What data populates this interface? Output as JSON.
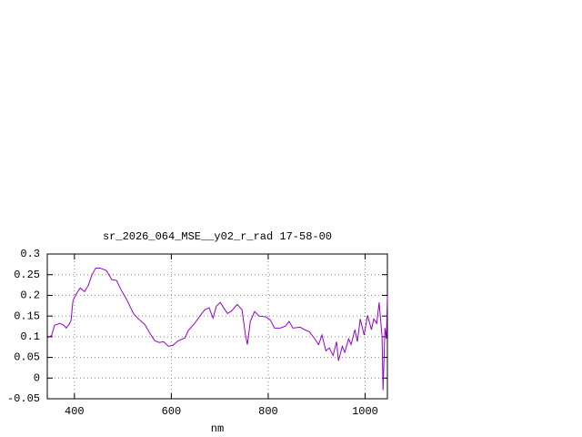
{
  "chart_data": {
    "type": "line",
    "title": "sr_2026_064_MSE__y02_r_rad 17-58-00",
    "x_label": "nm",
    "x": [
      344,
      353,
      359,
      370,
      378,
      383,
      389,
      393,
      397,
      402,
      412,
      421,
      429,
      436,
      444,
      453,
      466,
      477,
      487,
      496,
      507,
      522,
      532,
      545,
      556,
      566,
      575,
      584,
      594,
      603,
      614,
      628,
      635,
      648,
      659,
      669,
      678,
      686,
      693,
      701,
      708,
      716,
      725,
      736,
      746,
      753,
      757,
      763,
      772,
      781,
      795,
      804,
      813,
      825,
      836,
      843,
      851,
      866,
      875,
      885,
      896,
      904,
      911,
      919,
      926,
      934,
      941,
      945,
      953,
      958,
      966,
      971,
      979,
      984,
      990,
      998,
      1005,
      1013,
      1018,
      1024,
      1029,
      1035,
      1037,
      1041,
      1044,
      1046
    ],
    "series": [
      {
        "color": "#9400d3",
        "values": [
          0.097,
          0.103,
          0.128,
          0.132,
          0.128,
          0.121,
          0.13,
          0.139,
          0.187,
          0.2,
          0.218,
          0.209,
          0.225,
          0.249,
          0.266,
          0.266,
          0.26,
          0.238,
          0.236,
          0.214,
          0.192,
          0.156,
          0.143,
          0.13,
          0.108,
          0.09,
          0.086,
          0.088,
          0.077,
          0.079,
          0.09,
          0.097,
          0.115,
          0.132,
          0.15,
          0.165,
          0.17,
          0.145,
          0.174,
          0.183,
          0.17,
          0.156,
          0.163,
          0.178,
          0.165,
          0.104,
          0.081,
          0.137,
          0.161,
          0.15,
          0.148,
          0.141,
          0.121,
          0.121,
          0.126,
          0.137,
          0.121,
          0.123,
          0.117,
          0.112,
          0.095,
          0.081,
          0.104,
          0.066,
          0.073,
          0.055,
          0.088,
          0.042,
          0.077,
          0.062,
          0.095,
          0.081,
          0.117,
          0.088,
          0.143,
          0.104,
          0.152,
          0.117,
          0.143,
          0.132,
          0.183,
          0.099,
          -0.029,
          0.121,
          0.095,
          0.198
        ]
      }
    ],
    "xlim": [
      344,
      1046
    ],
    "xticks": [
      400,
      600,
      800,
      1000
    ],
    "ylim": [
      -0.05,
      0.3
    ],
    "yticks": [
      -0.05,
      0,
      0.05,
      0.1,
      0.15,
      0.2,
      0.25,
      0.3
    ],
    "grid": true
  }
}
